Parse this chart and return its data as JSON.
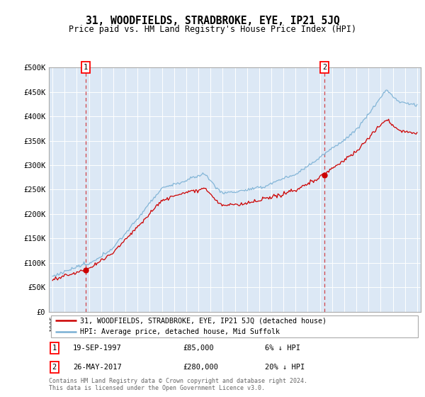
{
  "title": "31, WOODFIELDS, STRADBROKE, EYE, IP21 5JQ",
  "subtitle": "Price paid vs. HM Land Registry's House Price Index (HPI)",
  "legend_line1": "31, WOODFIELDS, STRADBROKE, EYE, IP21 5JQ (detached house)",
  "legend_line2": "HPI: Average price, detached house, Mid Suffolk",
  "sale1_date": "19-SEP-1997",
  "sale1_price": 85000,
  "sale1_label": "6% ↓ HPI",
  "sale2_date": "26-MAY-2017",
  "sale2_price": 280000,
  "sale2_label": "20% ↓ HPI",
  "footer1": "Contains HM Land Registry data © Crown copyright and database right 2024.",
  "footer2": "This data is licensed under the Open Government Licence v3.0.",
  "sale_color": "#cc0000",
  "hpi_color": "#7ab0d4",
  "bg_color": "#dce8f5",
  "ylim": [
    0,
    500000
  ],
  "yticks": [
    0,
    50000,
    100000,
    150000,
    200000,
    250000,
    300000,
    350000,
    400000,
    450000,
    500000
  ],
  "ytick_labels": [
    "£0",
    "£50K",
    "£100K",
    "£150K",
    "£200K",
    "£250K",
    "£300K",
    "£350K",
    "£400K",
    "£450K",
    "£500K"
  ],
  "sale1_year": 1997.72,
  "sale2_year": 2017.38
}
